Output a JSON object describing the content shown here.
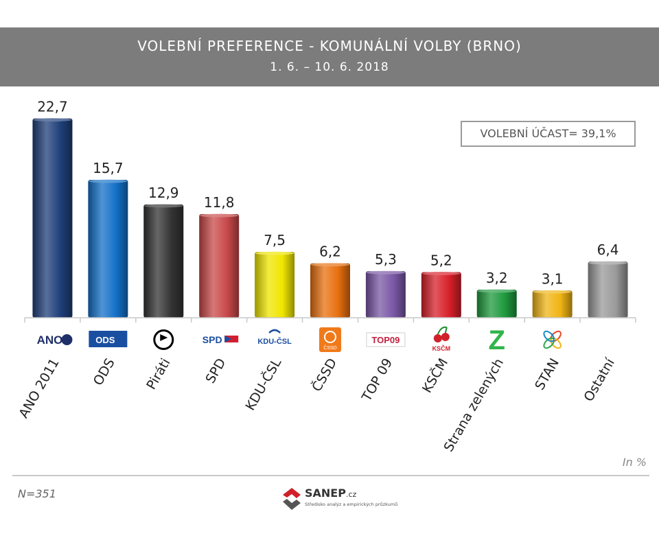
{
  "header": {
    "title": "VOLEBNÍ PREFERENCE - KOMUNÁLNÍ VOLBY (BRNO)",
    "subtitle": "1. 6. – 10. 6. 2018"
  },
  "turnout_label": "VOLEBNÍ ÚČAST= 39,1%",
  "unit_note": "In %",
  "sample_size": "N=351",
  "source_logo": {
    "name": "SANEP",
    "suffix": ".cz",
    "tagline": "Středisko analýz a empirických průzkumů"
  },
  "chart_data": {
    "type": "bar",
    "title": "VOLEBNÍ PREFERENCE - KOMUNÁLNÍ VOLBY (BRNO)",
    "categories": [
      "ANO 2011",
      "ODS",
      "Piráti",
      "SPD",
      "KDU-ČSL",
      "ČSSD",
      "TOP 09",
      "KSČM",
      "Strana zelených",
      "STAN",
      "Ostatní"
    ],
    "values": [
      22.7,
      15.7,
      12.9,
      11.8,
      7.5,
      6.2,
      5.3,
      5.2,
      3.2,
      3.1,
      6.4
    ],
    "value_labels": [
      "22,7",
      "15,7",
      "12,9",
      "11,8",
      "7,5",
      "6,2",
      "5,3",
      "5,2",
      "3,2",
      "3,1",
      "6,4"
    ],
    "colors": [
      "#1f3f7a",
      "#1470c8",
      "#333333",
      "#c9494a",
      "#f0e600",
      "#e8700f",
      "#7a58a6",
      "#d8202a",
      "#1f9a3e",
      "#f0b414",
      "#9a9a9a"
    ],
    "logo_texts": [
      "ANO",
      "ODS",
      "",
      "SPD",
      "KDU-ČSL",
      "ČSSD",
      "TOP09",
      "KSČM",
      "Z",
      "",
      ""
    ],
    "logo_icons": [
      "ano-logo-icon",
      "ods-logo-icon",
      "pirati-logo-icon",
      "spd-logo-icon",
      "kdu-csl-logo-icon",
      "cssd-logo-icon",
      "top09-logo-icon",
      "kscm-logo-icon",
      "zeleni-logo-icon",
      "stan-logo-icon",
      ""
    ],
    "ylim": [
      0,
      24
    ],
    "xlabel": "",
    "ylabel": "",
    "grid": false,
    "legend": "none"
  }
}
